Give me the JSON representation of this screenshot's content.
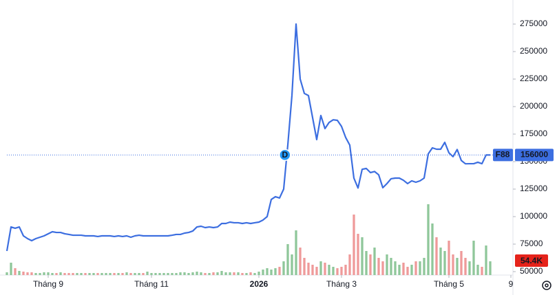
{
  "chart_data": {
    "type": "line",
    "xlim": [
      0,
      122
    ],
    "xticks": [
      {
        "value": 10,
        "label": "Tháng 9"
      },
      {
        "value": 35,
        "label": "Tháng 11"
      },
      {
        "value": 61,
        "label": "2026"
      },
      {
        "value": 81,
        "label": "Tháng 3"
      },
      {
        "value": 107,
        "label": "Tháng 5"
      },
      {
        "value": 122,
        "label": "9"
      }
    ],
    "ylim": [
      46875,
      296875
    ],
    "yticks": [
      50000,
      75000,
      100000,
      125000,
      150000,
      175000,
      200000,
      225000,
      250000,
      275000
    ],
    "y2lim": [
      0,
      1088000
    ],
    "series": [
      {
        "name": "F88",
        "color": "#3c6ee0",
        "values": [
          68750,
          90600,
          89400,
          90600,
          82500,
          80000,
          78100,
          80000,
          81250,
          82500,
          84400,
          86250,
          85600,
          85600,
          84400,
          83800,
          83100,
          83100,
          83100,
          82500,
          82500,
          82500,
          81900,
          82500,
          82500,
          82500,
          81900,
          82500,
          81900,
          82500,
          81250,
          82500,
          83100,
          82500,
          82500,
          82500,
          82500,
          82500,
          82500,
          82500,
          83100,
          83800,
          83800,
          85000,
          85600,
          86900,
          90600,
          91250,
          90000,
          90600,
          90000,
          90600,
          93750,
          93750,
          95000,
          94400,
          94400,
          93750,
          94400,
          93750,
          94400,
          95000,
          96900,
          100000,
          115600,
          118100,
          116900,
          125000,
          165000,
          210000,
          275000,
          225000,
          212000,
          210000,
          190000,
          170000,
          191900,
          180000,
          185600,
          188000,
          187500,
          182000,
          172000,
          165000,
          135000,
          126000,
          143000,
          143750,
          140000,
          141000,
          138000,
          126250,
          130000,
          134400,
          135000,
          135000,
          133000,
          130000,
          132500,
          131250,
          132500,
          135000,
          157000,
          162500,
          161250,
          161250,
          167500,
          158000,
          154500,
          161000,
          151000,
          148000,
          148100,
          148100,
          149400,
          148100,
          156000,
          156000
        ]
      },
      {
        "axis": "y2",
        "up_color": "#8fc79a",
        "down_color": "#ef9a9a",
        "last_value_label": "54.4K",
        "label_color": "#e5231b",
        "values": [
          10880,
          48960,
          27200,
          16320,
          13600,
          10880,
          10880,
          8160,
          8160,
          10880,
          10880,
          8160,
          8160,
          10880,
          8160,
          8160,
          8160,
          8160,
          8160,
          8160,
          8160,
          8160,
          8160,
          8160,
          8160,
          8160,
          8160,
          8160,
          8160,
          10880,
          8160,
          8160,
          8160,
          8160,
          13600,
          8160,
          8160,
          8160,
          8160,
          8160,
          8160,
          8160,
          10880,
          10880,
          8160,
          10880,
          13600,
          10880,
          8160,
          8160,
          10880,
          10880,
          16320,
          10880,
          10880,
          10880,
          10880,
          8160,
          8160,
          10880,
          8160,
          13600,
          21760,
          27200,
          21760,
          27200,
          32640,
          54400,
          122400,
          81600,
          176800,
          108800,
          68000,
          48960,
          40800,
          32640,
          54400,
          48960,
          40800,
          32640,
          27200,
          32640,
          40800,
          81600,
          239360,
          163200,
          149600,
          95200,
          81600,
          108800,
          68000,
          54400,
          81600,
          68000,
          54400,
          40800,
          48960,
          32640,
          40800,
          54400,
          54400,
          68000,
          280160,
          204000,
          149600,
          108800,
          95200,
          136000,
          81600,
          68000,
          95200,
          68000,
          54400,
          136000,
          40800,
          32640,
          116960,
          54400
        ]
      }
    ],
    "annotations": [
      {
        "text": "D",
        "x": 67.3,
        "y": 156000
      }
    ]
  }
}
